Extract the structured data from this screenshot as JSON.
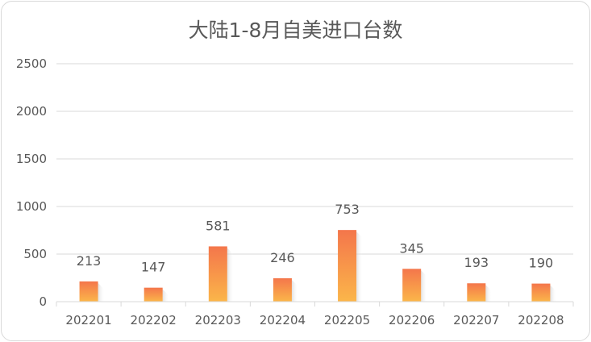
{
  "chart_data": {
    "type": "bar",
    "title": "大陆1-8月自美进口台数",
    "categories": [
      "202201",
      "202202",
      "202203",
      "202204",
      "202205",
      "202206",
      "202207",
      "202208"
    ],
    "values": [
      213,
      147,
      581,
      246,
      753,
      345,
      193,
      190
    ],
    "data_labels": [
      "213",
      "147",
      "581",
      "246",
      "753",
      "345",
      "193",
      "190"
    ],
    "ylim": [
      0,
      2500
    ],
    "yticks": [
      "0",
      "500",
      "1000",
      "1500",
      "2000",
      "2500"
    ],
    "grid": true,
    "legend": "none",
    "colors": {
      "bar_top": "#f4764b",
      "bar_bottom": "#fbb64a",
      "grid": "#d9d9d9",
      "text": "#595959"
    }
  }
}
